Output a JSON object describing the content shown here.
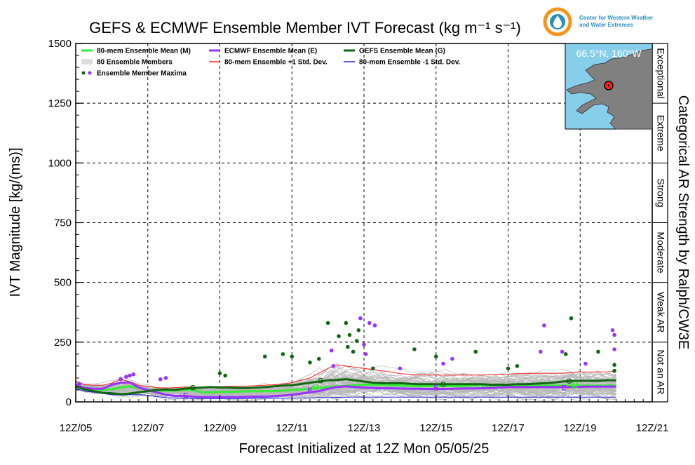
{
  "title": "GEFS & ECMWF Ensemble Member IVT Forecast (kg m⁻¹ s⁻¹)",
  "logo": {
    "line1": "Center for Western Weather",
    "line2": "and Water Extremes",
    "icon": "cw3e-droplet-logo",
    "colors": {
      "orange": "#f7941d",
      "teal": "#2a8fbd"
    }
  },
  "inset_map": {
    "location_label": "66.5°N, 160°W",
    "ocean_color": "#87ceeb",
    "land_color": "#808080"
  },
  "right_axis_title": "Categorical AR Strength by Ralph/CW3E",
  "categories_ar": [
    {
      "label": "Exceptional",
      "range": [
        1250,
        1500
      ]
    },
    {
      "label": "Extreme",
      "range": [
        1000,
        1250
      ]
    },
    {
      "label": "Strong",
      "range": [
        750,
        1000
      ]
    },
    {
      "label": "Moderate",
      "range": [
        500,
        750
      ]
    },
    {
      "label": "Weak AR",
      "range": [
        250,
        500
      ]
    },
    {
      "label": "Not an AR",
      "range": [
        0,
        250
      ]
    }
  ],
  "legend": [
    {
      "label": "80-mem Ensemble Mean (M)",
      "color": "#33ee33",
      "kind": "line"
    },
    {
      "label": "ECMWF Ensemble Mean (E)",
      "color": "#9933ff",
      "kind": "line"
    },
    {
      "label": "GEFS Ensemble Mean (G)",
      "color": "#116611",
      "kind": "line"
    },
    {
      "label": "80 Ensemble Members",
      "color": "#aaaaaa",
      "kind": "members"
    },
    {
      "label": "80-mem Ensemble +1 Std. Dev.",
      "color": "#ff2222",
      "kind": "line"
    },
    {
      "label": "80-mem Ensemble -1 Std. Dev.",
      "color": "#2222dd",
      "kind": "line"
    },
    {
      "label": "Ensemble Member Maxima",
      "color": "#9933ff",
      "color2": "#116611",
      "kind": "dots"
    }
  ],
  "chart_data": {
    "type": "line",
    "title": "GEFS & ECMWF Ensemble Member IVT Forecast (kg m⁻¹ s⁻¹)",
    "xlabel": "Forecast Initialized at 12Z Mon 05/05/25",
    "ylabel": "IVT Magnitude [kg/(ms)]",
    "xlim": [
      0,
      16
    ],
    "ylim": [
      0,
      1500
    ],
    "x_ticks": [
      "12Z/05",
      "12Z/07",
      "12Z/09",
      "12Z/11",
      "12Z/13",
      "12Z/15",
      "12Z/17",
      "12Z/19",
      "12Z/21"
    ],
    "y_ticks": [
      0,
      250,
      500,
      750,
      1000,
      1250,
      1500
    ],
    "grid": true,
    "legend_position": "top-left",
    "x": [
      0,
      0.25,
      0.5,
      0.75,
      1,
      1.25,
      1.5,
      1.75,
      2,
      2.25,
      2.5,
      2.75,
      3,
      3.25,
      3.5,
      3.75,
      4,
      4.25,
      4.5,
      4.75,
      5,
      5.25,
      5.5,
      5.75,
      6,
      6.25,
      6.5,
      6.75,
      7,
      7.25,
      7.5,
      7.75,
      8,
      8.25,
      8.5,
      8.75,
      9,
      9.25,
      9.5,
      9.75,
      10,
      10.25,
      10.5,
      10.75,
      11,
      11.25,
      11.5,
      11.75,
      12,
      12.25,
      12.5,
      12.75,
      13,
      13.25,
      13.5,
      13.75,
      14,
      14.25,
      14.5,
      14.75,
      15
    ],
    "series": [
      {
        "name": "80-mem Ensemble Mean (M)",
        "color": "#33ee33",
        "width": 3,
        "values": [
          68,
          60,
          55,
          50,
          53,
          60,
          65,
          58,
          50,
          48,
          46,
          48,
          50,
          50,
          40,
          40,
          42,
          42,
          43,
          44,
          45,
          45,
          45,
          47,
          50,
          52,
          55,
          58,
          62,
          65,
          67,
          70,
          72,
          72,
          72,
          70,
          68,
          67,
          66,
          66,
          66,
          67,
          66,
          66,
          68,
          68,
          68,
          68,
          67,
          67,
          67,
          67,
          68,
          68,
          68,
          68,
          68,
          68,
          68,
          68,
          68
        ]
      },
      {
        "name": "GEFS Ensemble Mean (G)",
        "color": "#116611",
        "width": 3,
        "values": [
          65,
          52,
          45,
          38,
          36,
          32,
          35,
          40,
          45,
          50,
          52,
          50,
          55,
          58,
          60,
          62,
          60,
          60,
          58,
          58,
          60,
          62,
          65,
          68,
          70,
          75,
          80,
          85,
          90,
          92,
          95,
          90,
          85,
          80,
          78,
          78,
          78,
          76,
          74,
          74,
          74,
          74,
          74,
          74,
          74,
          74,
          72,
          72,
          72,
          74,
          74,
          76,
          78,
          80,
          85,
          88,
          88,
          88,
          88,
          90,
          90
        ]
      },
      {
        "name": "ECMWF Ensemble Mean (E)",
        "color": "#9933ff",
        "width": 3,
        "values": [
          70,
          58,
          55,
          55,
          72,
          80,
          82,
          60,
          50,
          40,
          30,
          25,
          25,
          22,
          20,
          20,
          20,
          20,
          20,
          21,
          22,
          22,
          24,
          26,
          30,
          35,
          40,
          45,
          55,
          62,
          65,
          62,
          60,
          58,
          57,
          57,
          56,
          55,
          55,
          54,
          54,
          54,
          55,
          56,
          56,
          57,
          58,
          60,
          62,
          62,
          62,
          62,
          62,
          62,
          62,
          62,
          63,
          64,
          64,
          64,
          64
        ]
      },
      {
        "name": "80-mem Ensemble +1 Std. Dev.",
        "color": "#ff2222",
        "width": 1,
        "values": [
          85,
          72,
          70,
          70,
          78,
          95,
          85,
          70,
          65,
          60,
          58,
          60,
          62,
          62,
          60,
          62,
          63,
          65,
          65,
          66,
          68,
          70,
          72,
          75,
          80,
          90,
          100,
          120,
          140,
          155,
          150,
          145,
          140,
          135,
          130,
          125,
          118,
          116,
          114,
          112,
          112,
          112,
          112,
          112,
          112,
          112,
          114,
          116,
          116,
          118,
          118,
          120,
          120,
          120,
          120,
          122,
          125,
          125,
          125,
          126,
          128
        ]
      },
      {
        "name": "80-mem Ensemble -1 Std. Dev.",
        "color": "#2222dd",
        "width": 1,
        "values": [
          55,
          45,
          40,
          35,
          30,
          28,
          30,
          30,
          28,
          22,
          18,
          16,
          15,
          14,
          14,
          14,
          14,
          14,
          14,
          14,
          15,
          15,
          15,
          15,
          16,
          16,
          17,
          18,
          18,
          19,
          20,
          20,
          20,
          20,
          20,
          20,
          20,
          20,
          20,
          20,
          20,
          20,
          20,
          20,
          20,
          20,
          20,
          20,
          20,
          20,
          20,
          20,
          20,
          20,
          20,
          20,
          20,
          20,
          20,
          20,
          20
        ]
      }
    ],
    "member_maxima": [
      {
        "x": 0.1,
        "y": 75,
        "model": "ECMWF"
      },
      {
        "x": 1.25,
        "y": 95,
        "model": "ECMWF"
      },
      {
        "x": 1.4,
        "y": 105,
        "model": "ECMWF"
      },
      {
        "x": 1.5,
        "y": 110,
        "model": "ECMWF"
      },
      {
        "x": 1.6,
        "y": 115,
        "model": "ECMWF"
      },
      {
        "x": 2.35,
        "y": 95,
        "model": "ECMWF"
      },
      {
        "x": 2.5,
        "y": 100,
        "model": "ECMWF"
      },
      {
        "x": 4.0,
        "y": 120,
        "model": "GEFS"
      },
      {
        "x": 4.15,
        "y": 110,
        "model": "GEFS"
      },
      {
        "x": 5.25,
        "y": 190,
        "model": "GEFS"
      },
      {
        "x": 5.75,
        "y": 200,
        "model": "GEFS"
      },
      {
        "x": 6.0,
        "y": 190,
        "model": "GEFS"
      },
      {
        "x": 6.5,
        "y": 165,
        "model": "GEFS"
      },
      {
        "x": 6.75,
        "y": 180,
        "model": "GEFS"
      },
      {
        "x": 7.0,
        "y": 330,
        "model": "GEFS"
      },
      {
        "x": 7.1,
        "y": 215,
        "model": "ECMWF"
      },
      {
        "x": 7.15,
        "y": 150,
        "model": "ECMWF"
      },
      {
        "x": 7.3,
        "y": 275,
        "model": "GEFS"
      },
      {
        "x": 7.5,
        "y": 330,
        "model": "GEFS"
      },
      {
        "x": 7.55,
        "y": 230,
        "model": "GEFS"
      },
      {
        "x": 7.6,
        "y": 280,
        "model": "GEFS"
      },
      {
        "x": 7.7,
        "y": 210,
        "model": "GEFS"
      },
      {
        "x": 7.8,
        "y": 255,
        "model": "GEFS"
      },
      {
        "x": 7.85,
        "y": 300,
        "model": "GEFS"
      },
      {
        "x": 7.9,
        "y": 350,
        "model": "ECMWF"
      },
      {
        "x": 8.0,
        "y": 240,
        "model": "ECMWF"
      },
      {
        "x": 8.05,
        "y": 200,
        "model": "ECMWF"
      },
      {
        "x": 8.15,
        "y": 330,
        "model": "ECMWF"
      },
      {
        "x": 8.3,
        "y": 320,
        "model": "ECMWF"
      },
      {
        "x": 8.25,
        "y": 140,
        "model": "GEFS"
      },
      {
        "x": 9.0,
        "y": 140,
        "model": "ECMWF"
      },
      {
        "x": 9.4,
        "y": 220,
        "model": "GEFS"
      },
      {
        "x": 10.0,
        "y": 190,
        "model": "GEFS"
      },
      {
        "x": 10.2,
        "y": 160,
        "model": "ECMWF"
      },
      {
        "x": 10.45,
        "y": 180,
        "model": "ECMWF"
      },
      {
        "x": 11.1,
        "y": 210,
        "model": "GEFS"
      },
      {
        "x": 12.0,
        "y": 140,
        "model": "GEFS"
      },
      {
        "x": 12.25,
        "y": 150,
        "model": "GEFS"
      },
      {
        "x": 13.0,
        "y": 320,
        "model": "ECMWF"
      },
      {
        "x": 12.9,
        "y": 210,
        "model": "ECMWF"
      },
      {
        "x": 13.5,
        "y": 210,
        "model": "ECMWF"
      },
      {
        "x": 13.6,
        "y": 200,
        "model": "GEFS"
      },
      {
        "x": 13.75,
        "y": 350,
        "model": "GEFS"
      },
      {
        "x": 14.15,
        "y": 160,
        "model": "ECMWF"
      },
      {
        "x": 14.5,
        "y": 210,
        "model": "GEFS"
      },
      {
        "x": 14.9,
        "y": 300,
        "model": "ECMWF"
      },
      {
        "x": 14.95,
        "y": 280,
        "model": "ECMWF"
      },
      {
        "x": 14.95,
        "y": 220,
        "model": "ECMWF"
      },
      {
        "x": 14.95,
        "y": 155,
        "model": "GEFS"
      },
      {
        "x": 14.95,
        "y": 130,
        "model": "GEFS"
      }
    ],
    "series_labels": [
      {
        "text": "G",
        "x": 3.25,
        "y": 60,
        "color": "#116611"
      },
      {
        "text": "E",
        "x": 3.05,
        "y": 28,
        "color": "#9933ff"
      },
      {
        "text": "G",
        "x": 6.8,
        "y": 90,
        "color": "#116611"
      },
      {
        "text": "E",
        "x": 6.5,
        "y": 50,
        "color": "#9933ff"
      },
      {
        "text": "M",
        "x": 6.65,
        "y": 62,
        "color": "#33ee33"
      },
      {
        "text": "G",
        "x": 10.2,
        "y": 75,
        "color": "#116611"
      },
      {
        "text": "E",
        "x": 10.0,
        "y": 60,
        "color": "#9933ff"
      },
      {
        "text": "G",
        "x": 13.7,
        "y": 88,
        "color": "#116611"
      },
      {
        "text": "E",
        "x": 13.55,
        "y": 60,
        "color": "#9933ff"
      },
      {
        "text": "M",
        "x": 13.85,
        "y": 70,
        "color": "#33ee33"
      }
    ]
  }
}
